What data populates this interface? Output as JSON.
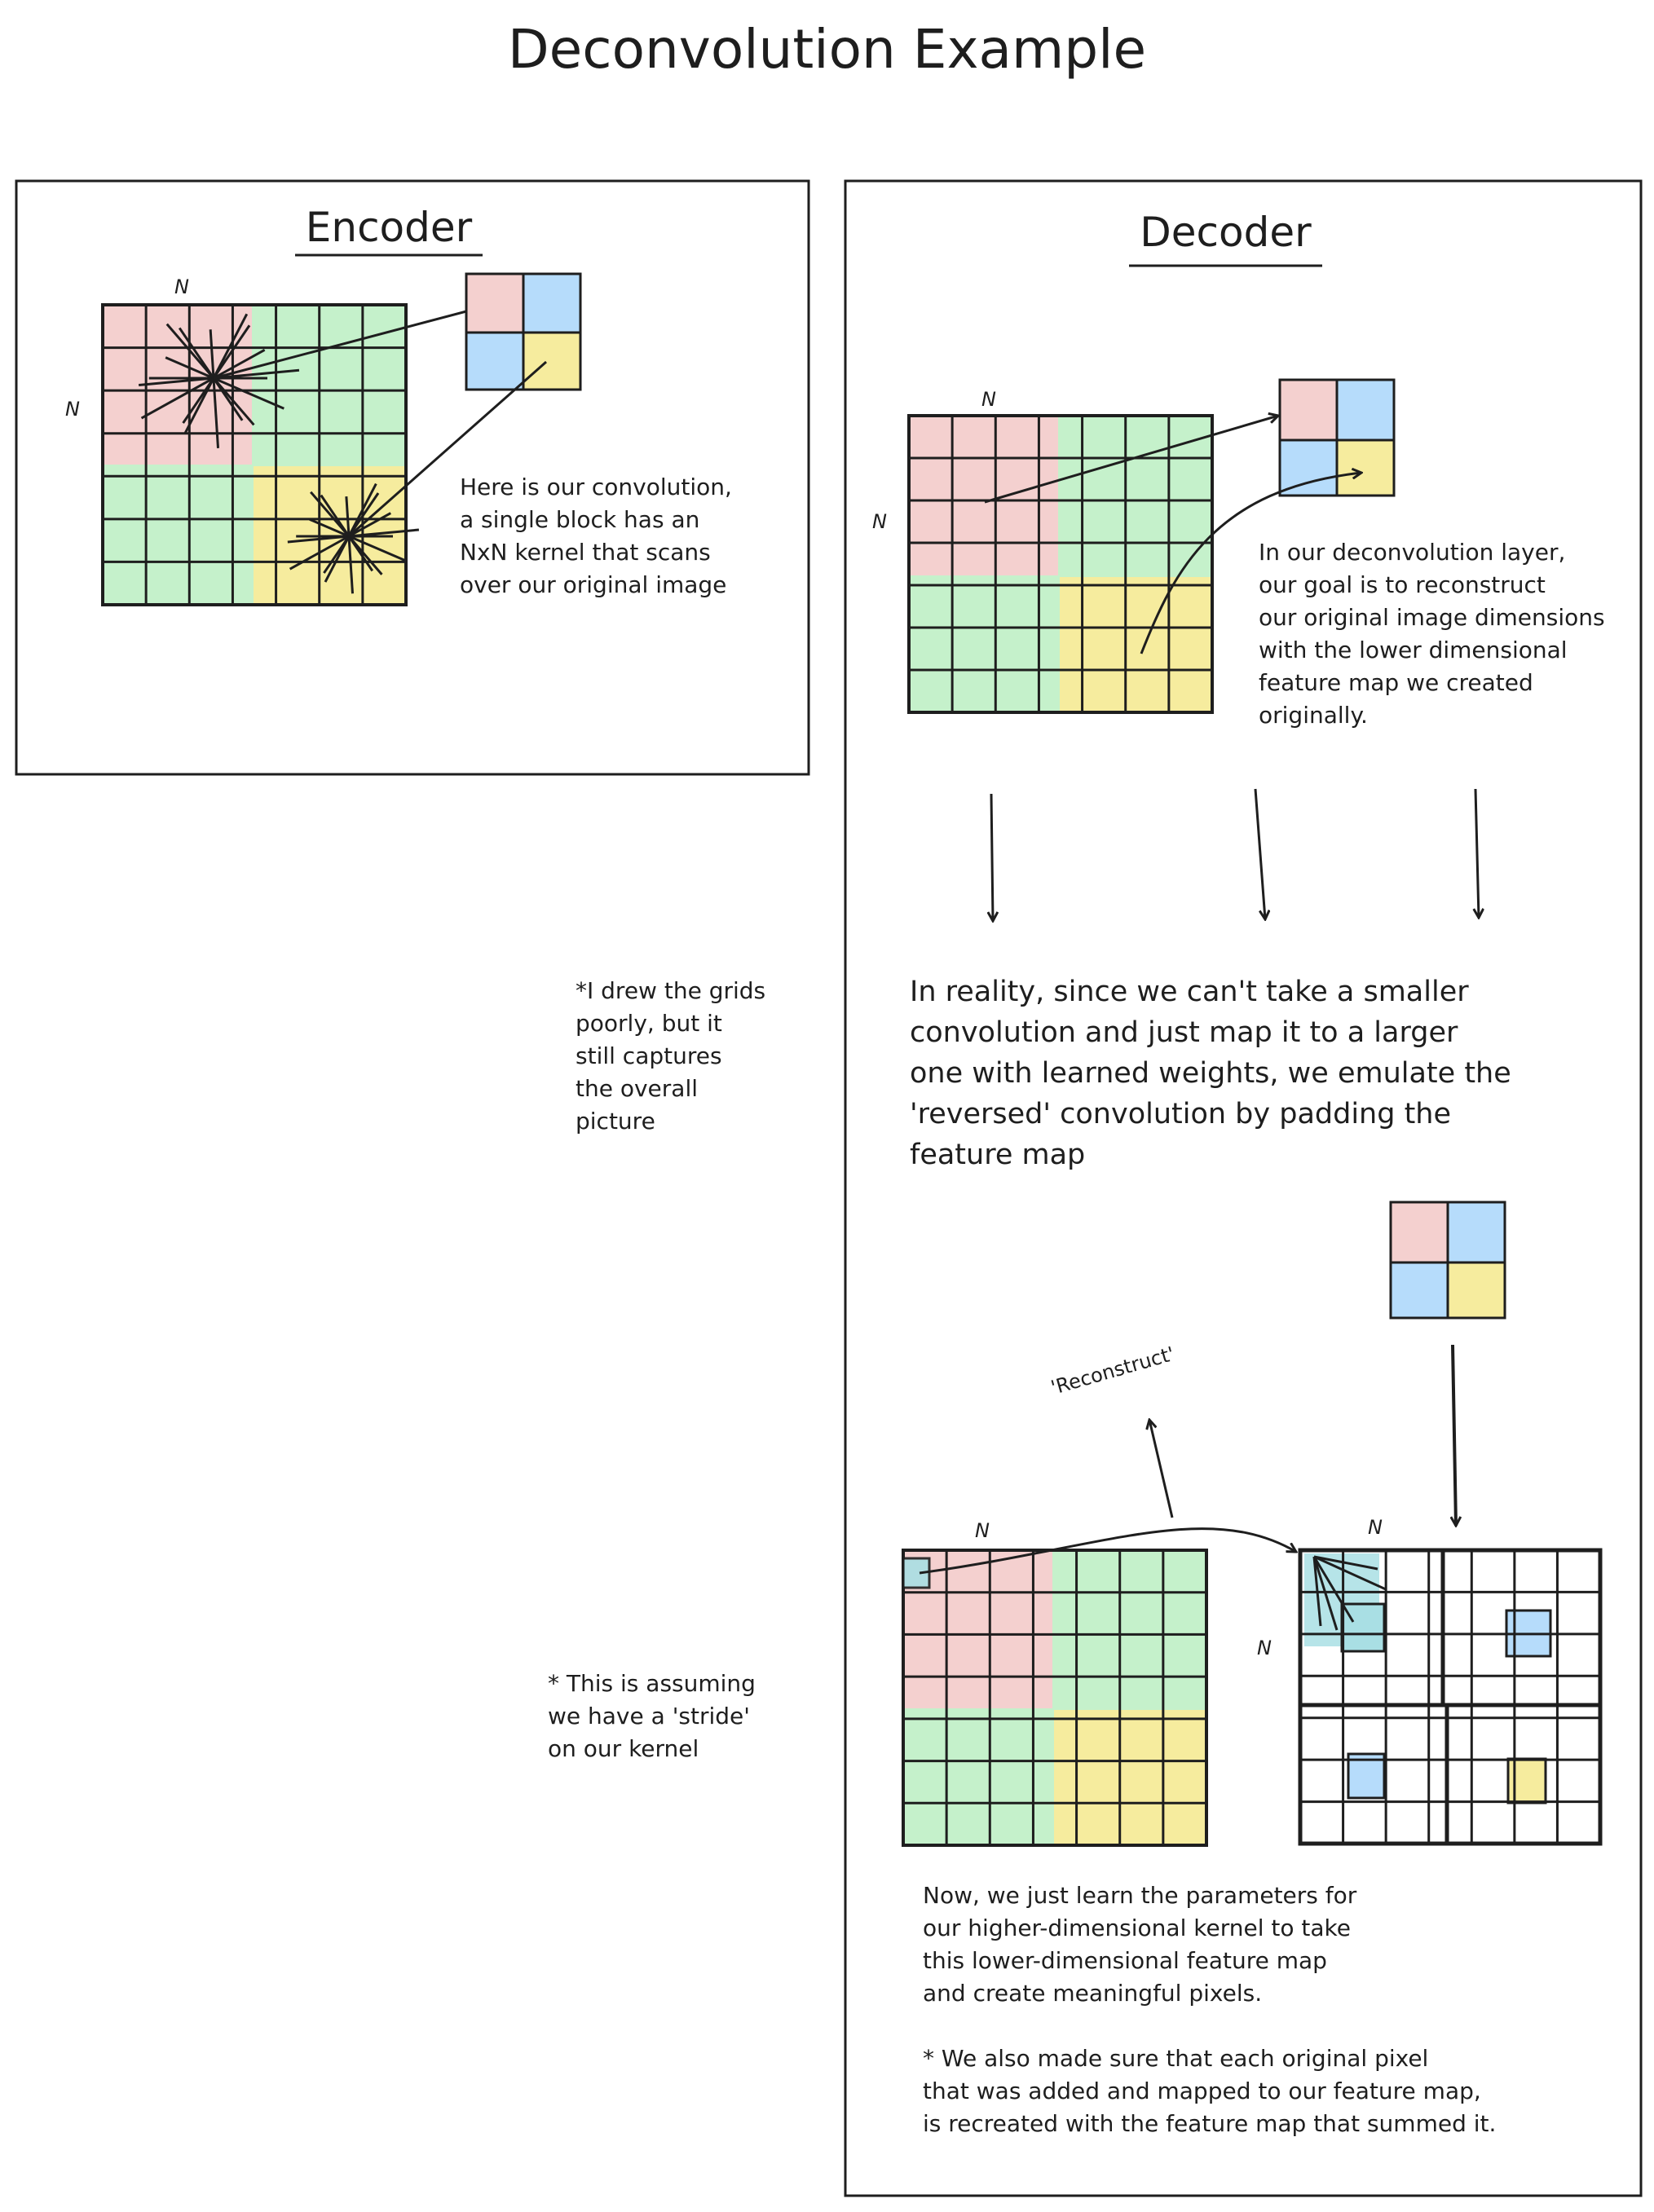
{
  "title": "Deconvolution Example",
  "encoder": {
    "heading": "Encoder",
    "dim_top": "N",
    "dim_left": "N",
    "note": "Here is our convolution,\na single block has an\nNxN kernel that scans\nover our original image"
  },
  "decoder": {
    "heading": "Decoder",
    "dim_top_1": "N",
    "dim_left_1": "N",
    "note_1": "In our deconvolution layer,\nour goal is to reconstruct\nour original image dimensions\nwith the lower dimensional\nfeature map we created\noriginally.",
    "reality_text": "In reality, since we can't take a smaller\nconvolution and just map it to a larger\none with learned weights, we emulate the\n'reversed' convolution by padding the\nfeature map",
    "reconstruct_label": "'Reconstruct'",
    "dim_top_2": "N",
    "dim_top_3": "N",
    "dim_left_3": "N",
    "learn_text": "Now, we just learn the parameters for\nour higher-dimensional kernel to take\nthis lower-dimensional feature map\nand create meaningful pixels.",
    "summed_text": "* We also made sure that each original pixel\nthat was added and mapped to our feature map,\nis recreated with the feature map that summed it."
  },
  "side_notes": {
    "grids_note": "*I drew the grids\npoorly, but it\nstill captures\nthe overall\npicture",
    "stride_note": "* This is assuming\nwe have a 'stride'\non our kernel"
  },
  "colors": {
    "red": "#f4d0cf",
    "green": "#c5f1cb",
    "yellow": "#f6ec9e",
    "blue": "#b6dcfb",
    "teal": "#a9dfe4",
    "ink": "#1e1e1e"
  }
}
